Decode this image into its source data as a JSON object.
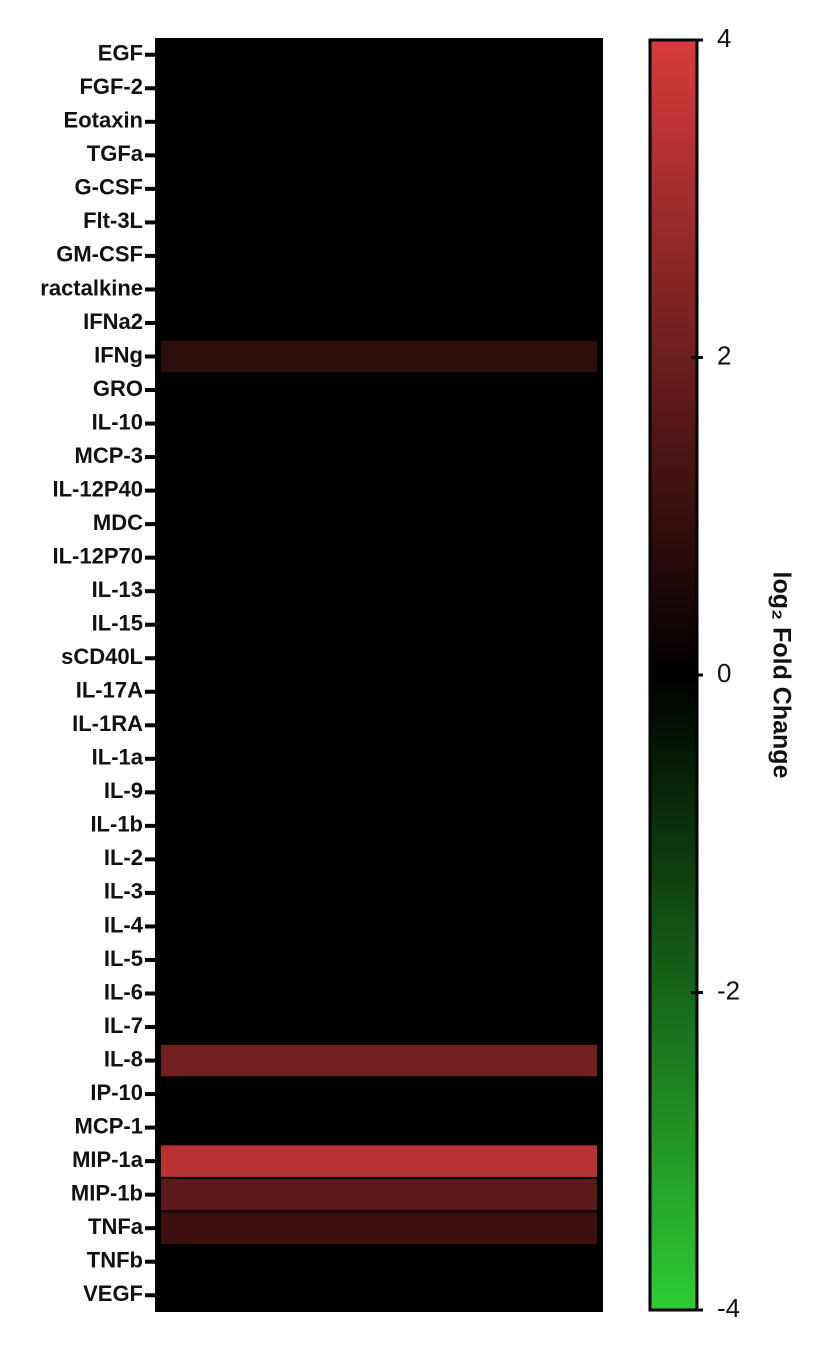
{
  "chart_data": {
    "type": "heatmap",
    "categories": [
      "EGF",
      "FGF-2",
      "Eotaxin",
      "TGFa",
      "G-CSF",
      "Flt-3L",
      "GM-CSF",
      "ractalkine",
      "IFNa2",
      "IFNg",
      "GRO",
      "IL-10",
      "MCP-3",
      "IL-12P40",
      "MDC",
      "IL-12P70",
      "IL-13",
      "IL-15",
      "sCD40L",
      "IL-17A",
      "IL-1RA",
      "IL-1a",
      "IL-9",
      "IL-1b",
      "IL-2",
      "IL-3",
      "IL-4",
      "IL-5",
      "IL-6",
      "IL-7",
      "IL-8",
      "IP-10",
      "MCP-1",
      "MIP-1a",
      "MIP-1b",
      "TNFa",
      "TNFb",
      "VEGF"
    ],
    "values": [
      0,
      0,
      0,
      0,
      0,
      0,
      0,
      0,
      0,
      0.85,
      0,
      0,
      0,
      0,
      0,
      0,
      0,
      0,
      0,
      0,
      0,
      0,
      0,
      0,
      0,
      0,
      0,
      0,
      0,
      0,
      2.1,
      0,
      0,
      3.4,
      1.7,
      1.1,
      0,
      0
    ],
    "colorbar_label": "log₂ Fold Change",
    "zlim": [
      -4,
      4
    ],
    "zticks": [
      -4,
      -2,
      0,
      2,
      4
    ],
    "colormap": [
      "#2ecc33",
      "#000000",
      "#d93b3b"
    ]
  }
}
